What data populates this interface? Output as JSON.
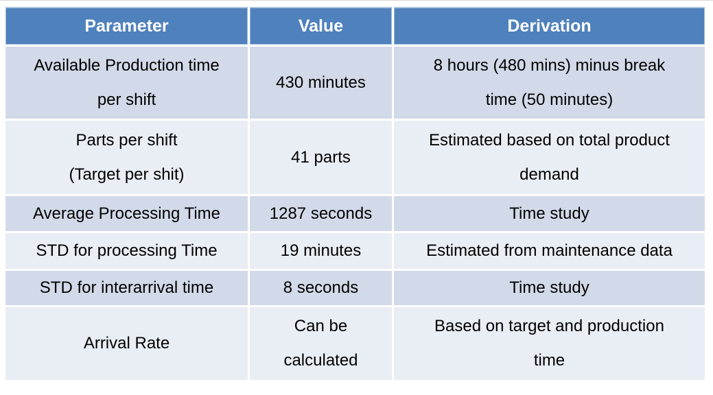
{
  "table": {
    "header": {
      "parameter": "Parameter",
      "value": "Value",
      "derivation": "Derivation"
    },
    "rows": [
      {
        "parameter": "Available Production time\nper shift",
        "value": "430 minutes",
        "derivation": "8 hours (480 mins) minus break\ntime (50 minutes)"
      },
      {
        "parameter": "Parts per shift\n(Target per shit)",
        "value": "41 parts",
        "derivation": "Estimated based on total product\ndemand"
      },
      {
        "parameter": "Average Processing Time",
        "value": "1287 seconds",
        "derivation": "Time study"
      },
      {
        "parameter": "STD for processing Time",
        "value": "19 minutes",
        "derivation": "Estimated from maintenance data"
      },
      {
        "parameter": "STD for interarrival time",
        "value": "8 seconds",
        "derivation": "Time study"
      },
      {
        "parameter": "Arrival Rate",
        "value": "Can be\ncalculated",
        "derivation": "Based on target and production\ntime"
      }
    ],
    "colors": {
      "header_bg": "#4F81BD",
      "header_text": "#FFFFFF",
      "band_dark": "#D2D9E8",
      "band_light": "#E9EDF4",
      "body_text": "#000000"
    }
  }
}
